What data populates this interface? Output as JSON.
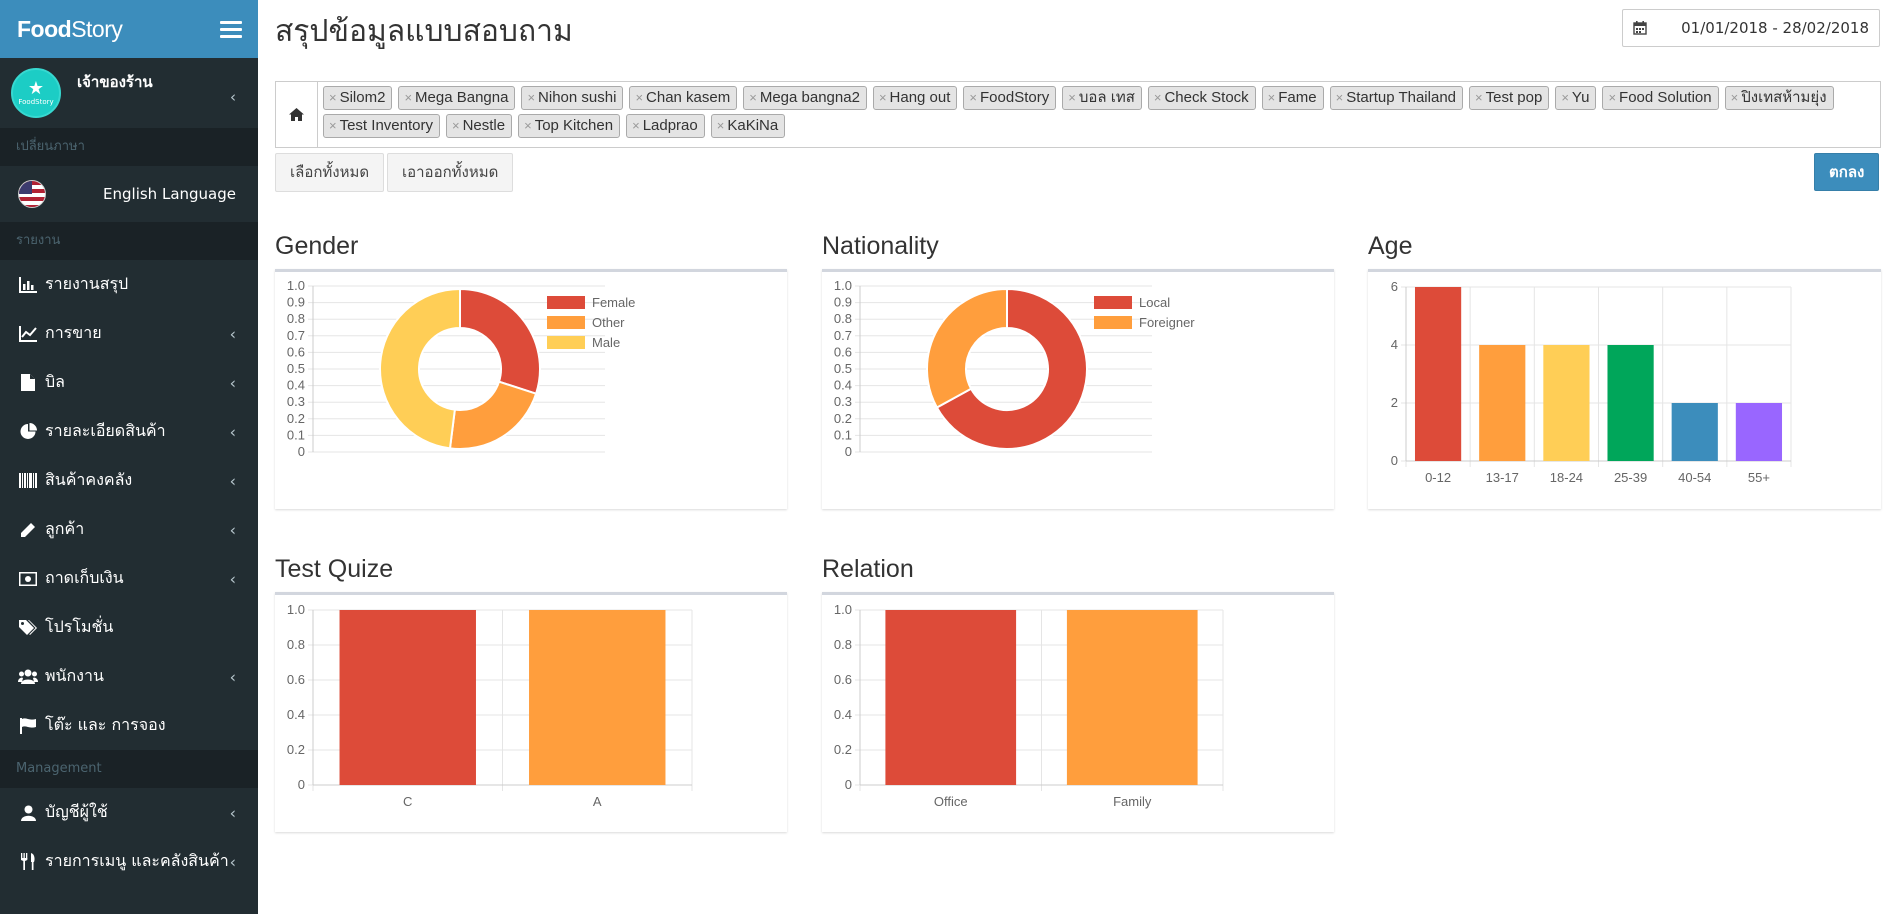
{
  "brand": {
    "logo_bold": "Food",
    "logo_rest": "Story"
  },
  "user": {
    "name": "เจ้าของร้าน",
    "avatar_text": "FoodStory"
  },
  "sidebar": {
    "language_header": "เปลี่ยนภาษา",
    "language_label": "English Language",
    "report_header": "รายงาน",
    "items": [
      {
        "label": "รายงานสรุป",
        "icon": "bar-chart-icon",
        "has_children": false
      },
      {
        "label": "การขาย",
        "icon": "line-chart-icon",
        "has_children": true
      },
      {
        "label": "บิล",
        "icon": "file-icon",
        "has_children": true
      },
      {
        "label": "รายละเอียดสินค้า",
        "icon": "pie-chart-icon",
        "has_children": true
      },
      {
        "label": "สินค้าคงคลัง",
        "icon": "barcode-icon",
        "has_children": true
      },
      {
        "label": "ลูกค้า",
        "icon": "pencil-icon",
        "has_children": true
      },
      {
        "label": "ถาดเก็บเงิน",
        "icon": "money-icon",
        "has_children": true
      },
      {
        "label": "โปรโมชั่น",
        "icon": "tags-icon",
        "has_children": false
      },
      {
        "label": "พนักงาน",
        "icon": "users-icon",
        "has_children": true
      },
      {
        "label": "โต๊ะ และ การจอง",
        "icon": "flag-icon",
        "has_children": false
      }
    ],
    "management_header": "Management",
    "management_items": [
      {
        "label": "บัญชีผู้ใช้",
        "icon": "user-icon",
        "has_children": true
      },
      {
        "label": "รายการเมนู และคลังสินค้า",
        "icon": "cutlery-icon",
        "has_children": true
      }
    ]
  },
  "main": {
    "title": "สรุปข้อมูลแบบสอบถาม",
    "date_range": "01/01/2018 - 28/02/2018",
    "branches": [
      "Silom2",
      "Mega Bangna",
      "Nihon sushi",
      "Chan kasem",
      "Mega bangna2",
      "Hang out",
      "FoodStory",
      "บอล เทส",
      "Check Stock",
      "Fame",
      "Startup Thailand",
      "Test pop",
      "Yu",
      "Food Solution",
      "ปิงเทสห้ามยุ่ง",
      "Test Inventory",
      "Nestle",
      "Top Kitchen",
      "Ladprao",
      "KaKiNa"
    ],
    "select_all_label": "เลือกทั้งหมด",
    "clear_all_label": "เอาออกทั้งหมด",
    "submit_label": "ตกลง"
  },
  "colors": {
    "red": "#dd4b39",
    "orange": "#ff9e3d",
    "yellow": "#ffce56",
    "green": "#00a65a",
    "blue": "#3c8dbc",
    "purple": "#9966ff"
  },
  "chart_data": [
    {
      "id": "gender",
      "type": "pie",
      "title": "Gender",
      "categories": [
        "Female",
        "Other",
        "Male"
      ],
      "values": [
        30,
        22,
        48
      ],
      "colors": [
        "#dd4b39",
        "#ff9e3d",
        "#ffce56"
      ],
      "y_ticks": [
        "1.0",
        "0.9",
        "0.8",
        "0.7",
        "0.6",
        "0.5",
        "0.4",
        "0.3",
        "0.2",
        "0.1",
        "0"
      ],
      "legend": "right"
    },
    {
      "id": "nationality",
      "type": "pie",
      "title": "Nationality",
      "categories": [
        "Local",
        "Foreigner"
      ],
      "values": [
        67,
        33
      ],
      "colors": [
        "#dd4b39",
        "#ff9e3d"
      ],
      "y_ticks": [
        "1.0",
        "0.9",
        "0.8",
        "0.7",
        "0.6",
        "0.5",
        "0.4",
        "0.3",
        "0.2",
        "0.1",
        "0"
      ],
      "legend": "right"
    },
    {
      "id": "age",
      "type": "bar",
      "title": "Age",
      "categories": [
        "0-12",
        "13-17",
        "18-24",
        "25-39",
        "40-54",
        "55+"
      ],
      "values": [
        6,
        4,
        4,
        4,
        2,
        2
      ],
      "colors": [
        "#dd4b39",
        "#ff9e3d",
        "#ffce56",
        "#00a65a",
        "#3c8dbc",
        "#9966ff"
      ],
      "ylim": [
        0,
        6
      ],
      "y_ticks": [
        "6",
        "4",
        "2",
        "0"
      ]
    },
    {
      "id": "test-quize",
      "type": "bar",
      "title": "Test Quize",
      "categories": [
        "C",
        "A"
      ],
      "values": [
        1.0,
        1.0
      ],
      "colors": [
        "#dd4b39",
        "#ff9e3d"
      ],
      "ylim": [
        0,
        1.0
      ],
      "y_ticks": [
        "1.0",
        "0.8",
        "0.6",
        "0.4",
        "0.2",
        "0"
      ]
    },
    {
      "id": "relation",
      "type": "bar",
      "title": "Relation",
      "categories": [
        "Office",
        "Family"
      ],
      "values": [
        1.0,
        1.0
      ],
      "colors": [
        "#dd4b39",
        "#ff9e3d"
      ],
      "ylim": [
        0,
        1.0
      ],
      "y_ticks": [
        "1.0",
        "0.8",
        "0.6",
        "0.4",
        "0.2",
        "0"
      ]
    }
  ]
}
